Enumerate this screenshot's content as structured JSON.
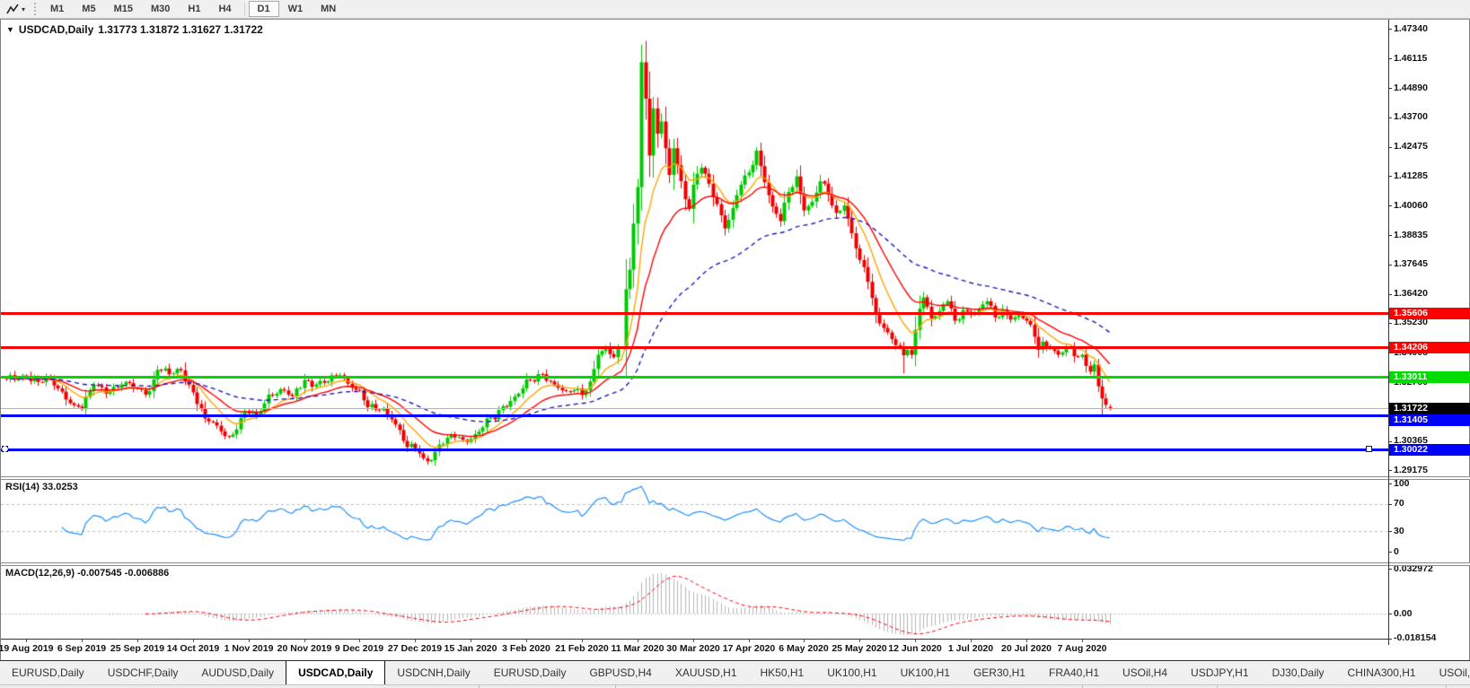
{
  "toolbar": {
    "tool_icon": "chart-line-tool",
    "dropdown_glyph": "▾",
    "groups": [
      [
        "M1",
        "M5",
        "M15",
        "M30",
        "H1",
        "H4"
      ],
      [
        "D1",
        "W1",
        "MN"
      ]
    ],
    "active_timeframe": "D1"
  },
  "chart": {
    "title": {
      "collapse_glyph": "▼",
      "symbol": "USDCAD,Daily",
      "ohlc": "1.31773 1.31872 1.31627 1.31722"
    },
    "price_axis": {
      "ticks": [
        "1.47340",
        "1.46115",
        "1.44890",
        "1.43700",
        "1.42475",
        "1.41285",
        "1.40060",
        "1.38835",
        "1.37645",
        "1.36420",
        "1.35230",
        "1.34005",
        "1.32780",
        "1.31555",
        "1.30365",
        "1.29175"
      ]
    },
    "time_axis": [
      "19 Aug 2019",
      "6 Sep 2019",
      "25 Sep 2019",
      "14 Oct 2019",
      "1 Nov 2019",
      "20 Nov 2019",
      "9 Dec 2019",
      "27 Dec 2019",
      "15 Jan 2020",
      "3 Feb 2020",
      "21 Feb 2020",
      "11 Mar 2020",
      "30 Mar 2020",
      "17 Apr 2020",
      "6 May 2020",
      "25 May 2020",
      "12 Jun 2020",
      "1 Jul 2020",
      "20 Jul 2020",
      "7 Aug 2020"
    ],
    "hlines": [
      {
        "price": 1.35606,
        "label": "1.35606",
        "color": "#FF0000",
        "thickness": 3
      },
      {
        "price": 1.34206,
        "label": "1.34206",
        "color": "#FF0000",
        "thickness": 3
      },
      {
        "price": 1.33011,
        "label": "1.33011",
        "color": "#00DC00",
        "thickness": 3
      },
      {
        "price": 1.31405,
        "label": "1.31405",
        "color": "#0000FF",
        "thickness": 3
      },
      {
        "price": 1.30022,
        "label": "1.30022",
        "color": "#0000FF",
        "thickness": 3,
        "handle": true
      }
    ],
    "current_price": {
      "value": 1.31722,
      "label": "1.31722",
      "line_color": "#b4b4b4",
      "tag_bg": "#000000"
    },
    "colors": {
      "candle_up": "#00C800",
      "candle_down": "#F00000",
      "background": "#ffffff"
    }
  },
  "rsi": {
    "label": "RSI(14) 33.0253",
    "ticks": [
      "100",
      "70",
      "30",
      "0"
    ],
    "levels": [
      70,
      30
    ],
    "line_color": "#1E90FF",
    "level_color": "#bbbbbb"
  },
  "macd": {
    "label": "MACD(12,26,9) -0.007545 -0.006886",
    "ticks": [
      "0.032972",
      "0.00",
      "-0.018154"
    ],
    "histogram_color": "#b4b4b4",
    "signal_color": "#FF0000"
  },
  "tabs": {
    "items": [
      "EURUSD,Daily",
      "USDCHF,Daily",
      "AUDUSD,Daily",
      "USDCAD,Daily",
      "USDCNH,Daily",
      "EURUSD,Daily",
      "GBPUSD,H4",
      "XAUUSD,H1",
      "HK50,H1",
      "UK100,H1",
      "UK100,H1",
      "GER30,H1",
      "FRA40,H1",
      "USOil,H4",
      "USDJPY,H1",
      "DJ30,Daily",
      "CHINA300,H1",
      "USOil,H1"
    ],
    "active_index": 3,
    "scroll_left_glyph": "◂",
    "scroll_right_glyph": "▸"
  },
  "chart_data": {
    "type": "candlestick",
    "symbol": "USDCAD",
    "timeframe": "Daily",
    "bars": 279,
    "price_range": {
      "axis_min": 1.29175,
      "axis_max": 1.4734
    },
    "close_anchors": [
      [
        0,
        1.3292
      ],
      [
        5,
        1.3305
      ],
      [
        8,
        1.328
      ],
      [
        11,
        1.3292
      ],
      [
        14,
        1.324
      ],
      [
        17,
        1.3185
      ],
      [
        19,
        1.317
      ],
      [
        22,
        1.3268
      ],
      [
        26,
        1.3242
      ],
      [
        30,
        1.328
      ],
      [
        33,
        1.3252
      ],
      [
        36,
        1.3242
      ],
      [
        38,
        1.333
      ],
      [
        41,
        1.3312
      ],
      [
        44,
        1.3328
      ],
      [
        47,
        1.3237
      ],
      [
        50,
        1.313
      ],
      [
        53,
        1.31
      ],
      [
        56,
        1.3055
      ],
      [
        58,
        1.3085
      ],
      [
        60,
        1.316
      ],
      [
        63,
        1.3142
      ],
      [
        66,
        1.3228
      ],
      [
        69,
        1.325
      ],
      [
        72,
        1.3222
      ],
      [
        75,
        1.3288
      ],
      [
        78,
        1.327
      ],
      [
        81,
        1.3282
      ],
      [
        84,
        1.3308
      ],
      [
        87,
        1.3256
      ],
      [
        89,
        1.3246
      ],
      [
        91,
        1.3176
      ],
      [
        93,
        1.3166
      ],
      [
        95,
        1.3172
      ],
      [
        97,
        1.3126
      ],
      [
        99,
        1.3082
      ],
      [
        101,
        1.3012
      ],
      [
        103,
        1.3006
      ],
      [
        105,
        1.2966
      ],
      [
        107,
        1.2958
      ],
      [
        109,
        1.3022
      ],
      [
        111,
        1.305
      ],
      [
        113,
        1.3052
      ],
      [
        115,
        1.3042
      ],
      [
        117,
        1.3046
      ],
      [
        119,
        1.3076
      ],
      [
        121,
        1.313
      ],
      [
        123,
        1.3126
      ],
      [
        125,
        1.318
      ],
      [
        127,
        1.3202
      ],
      [
        129,
        1.3232
      ],
      [
        131,
        1.329
      ],
      [
        133,
        1.3282
      ],
      [
        135,
        1.3312
      ],
      [
        137,
        1.3282
      ],
      [
        139,
        1.3256
      ],
      [
        141,
        1.3242
      ],
      [
        143,
        1.3246
      ],
      [
        145,
        1.3226
      ],
      [
        147,
        1.3282
      ],
      [
        149,
        1.3392
      ],
      [
        151,
        1.3422
      ],
      [
        153,
        1.3382
      ],
      [
        155,
        1.3422
      ],
      [
        156,
        1.3662
      ],
      [
        157,
        1.3742
      ],
      [
        158,
        1.3932
      ],
      [
        159,
        1.4082
      ],
      [
        160,
        1.4596
      ],
      [
        161,
        1.4446
      ],
      [
        162,
        1.4212
      ],
      [
        163,
        1.4406
      ],
      [
        164,
        1.4302
      ],
      [
        165,
        1.4352
      ],
      [
        166,
        1.4242
      ],
      [
        167,
        1.4132
      ],
      [
        168,
        1.4242
      ],
      [
        169,
        1.4172
      ],
      [
        171,
        1.4032
      ],
      [
        172,
        1.3992
      ],
      [
        173,
        1.4092
      ],
      [
        175,
        1.4162
      ],
      [
        177,
        1.4096
      ],
      [
        179,
        1.4012
      ],
      [
        181,
        1.3912
      ],
      [
        183,
        1.3996
      ],
      [
        185,
        1.4092
      ],
      [
        187,
        1.4142
      ],
      [
        189,
        1.4232
      ],
      [
        191,
        1.4102
      ],
      [
        193,
        1.4002
      ],
      [
        195,
        1.3942
      ],
      [
        197,
        1.4062
      ],
      [
        199,
        1.4126
      ],
      [
        201,
        1.3986
      ],
      [
        203,
        1.4022
      ],
      [
        205,
        1.4106
      ],
      [
        207,
        1.4052
      ],
      [
        209,
        1.3976
      ],
      [
        211,
        1.4006
      ],
      [
        213,
        1.3892
      ],
      [
        215,
        1.3782
      ],
      [
        217,
        1.3692
      ],
      [
        219,
        1.3562
      ],
      [
        221,
        1.3502
      ],
      [
        223,
        1.3456
      ],
      [
        225,
        1.3422
      ],
      [
        226,
        1.339
      ],
      [
        227,
        1.3412
      ],
      [
        228,
        1.3392
      ],
      [
        230,
        1.3582
      ],
      [
        231,
        1.3628
      ],
      [
        233,
        1.3542
      ],
      [
        235,
        1.3572
      ],
      [
        237,
        1.3612
      ],
      [
        239,
        1.3532
      ],
      [
        241,
        1.3576
      ],
      [
        243,
        1.3556
      ],
      [
        245,
        1.3582
      ],
      [
        247,
        1.3612
      ],
      [
        249,
        1.3546
      ],
      [
        251,
        1.3576
      ],
      [
        253,
        1.3536
      ],
      [
        255,
        1.3556
      ],
      [
        257,
        1.3532
      ],
      [
        259,
        1.3466
      ],
      [
        260,
        1.3412
      ],
      [
        261,
        1.3446
      ],
      [
        263,
        1.3416
      ],
      [
        265,
        1.3392
      ],
      [
        267,
        1.3422
      ],
      [
        269,
        1.3386
      ],
      [
        271,
        1.3392
      ],
      [
        272,
        1.3346
      ],
      [
        273,
        1.3322
      ],
      [
        274,
        1.3352
      ],
      [
        275,
        1.3262
      ],
      [
        276,
        1.3212
      ],
      [
        277,
        1.3186
      ],
      [
        278,
        1.31722
      ]
    ],
    "overrides": {
      "160": {
        "h": 1.4668
      },
      "226": {
        "l": 1.3315
      },
      "276": {
        "l": 1.3142
      },
      "278": {
        "o": 1.31773,
        "h": 1.31872,
        "l": 1.31627,
        "c": 1.31722
      }
    },
    "moving_averages": [
      {
        "period": 10,
        "color": "#FFA500",
        "style": "solid"
      },
      {
        "period": 21,
        "color": "#FF0000",
        "style": "solid"
      },
      {
        "period": 55,
        "color": "#1a1ab8",
        "style": "dashed"
      }
    ],
    "rsi_period": 14,
    "macd_params": {
      "fast": 12,
      "slow": 26,
      "signal": 9
    },
    "macd_axis": {
      "max": 0.032972,
      "min": -0.018154
    }
  }
}
